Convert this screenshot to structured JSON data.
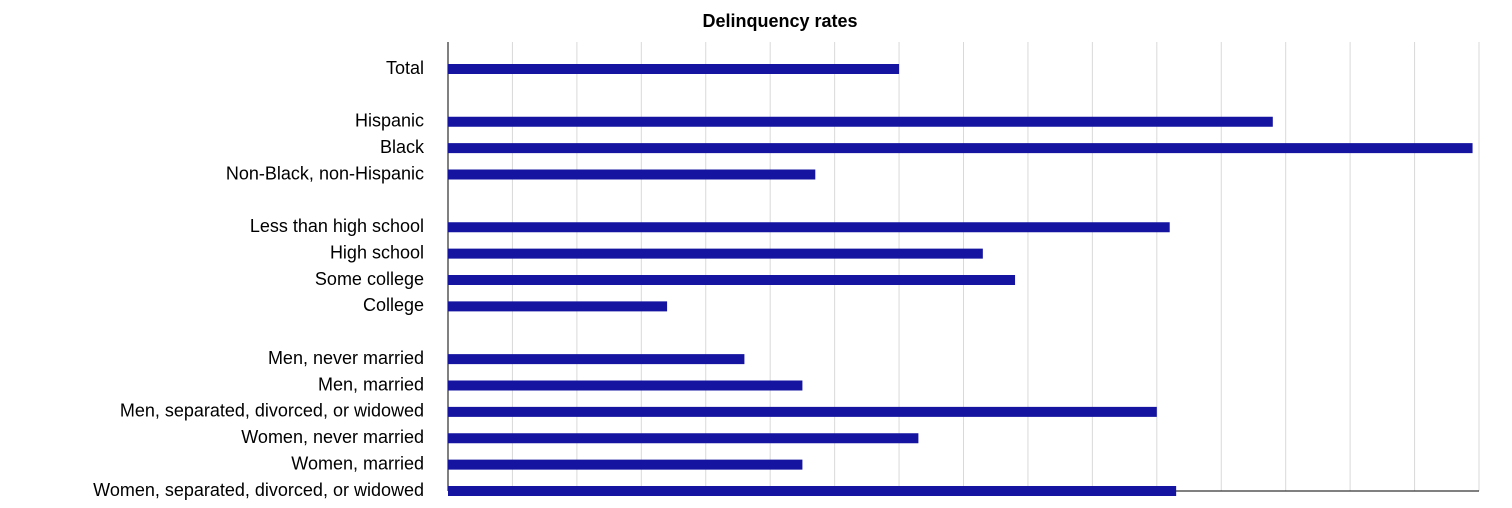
{
  "chart_data": {
    "type": "bar",
    "orientation": "horizontal",
    "title": "Delinquency rates",
    "categories": [
      "Total",
      null,
      "Hispanic",
      "Black",
      "Non-Black, non-Hispanic",
      null,
      "Less than high school",
      "High school",
      "Some college",
      "College",
      null,
      "Men, never married",
      "Men, married",
      "Men, separated, divorced, or widowed",
      "Women, never married",
      "Women, married",
      "Women, separated, divorced, or widowed"
    ],
    "values": [
      7.0,
      null,
      12.8,
      15.9,
      5.7,
      null,
      11.2,
      8.3,
      8.8,
      3.4,
      null,
      4.6,
      5.5,
      11.0,
      7.3,
      5.5,
      11.3
    ],
    "color": "#1414a0",
    "xlim": [
      0,
      16
    ],
    "xticks": [
      0,
      1,
      2,
      3,
      4,
      5,
      6,
      7,
      8,
      9,
      10,
      11,
      12,
      13,
      14,
      15,
      16
    ],
    "grid": true
  }
}
